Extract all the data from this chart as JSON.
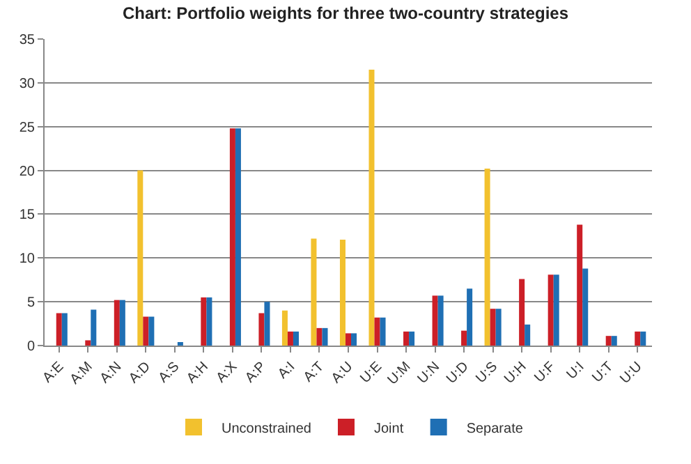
{
  "chart_data": {
    "type": "bar",
    "title": "Chart: Portfolio weights for three two-country strategies",
    "categories": [
      "A:E",
      "A:M",
      "A:N",
      "A:D",
      "A:S",
      "A:H",
      "A:X",
      "A:P",
      "A:I",
      "A:T",
      "A:U",
      "U:E",
      "U:M",
      "U:N",
      "U:D",
      "U:S",
      "U:H",
      "U:F",
      "U:I",
      "U:T",
      "U:U"
    ],
    "series": [
      {
        "name": "Unconstrained",
        "color": "#f2c12e",
        "values": [
          0,
          0,
          0,
          20,
          0,
          0,
          0,
          0,
          4,
          12.2,
          12.1,
          31.5,
          0,
          0,
          0,
          20.2,
          0,
          0,
          0,
          0,
          0
        ]
      },
      {
        "name": "Joint",
        "color": "#cc1f27",
        "values": [
          3.7,
          0.6,
          5.2,
          3.3,
          0,
          5.5,
          24.8,
          3.7,
          1.6,
          2,
          1.4,
          3.2,
          1.6,
          5.7,
          1.7,
          4.2,
          7.6,
          8.1,
          13.8,
          1.1,
          1.6
        ]
      },
      {
        "name": "Separate",
        "color": "#1f6fb4",
        "values": [
          3.7,
          4.1,
          5.2,
          3.3,
          0.4,
          5.5,
          24.8,
          5,
          1.6,
          2,
          1.4,
          3.2,
          1.6,
          5.7,
          6.5,
          4.2,
          2.4,
          8.1,
          8.8,
          1.1,
          1.6
        ]
      }
    ],
    "ylim": [
      0,
      35
    ],
    "yticks": [
      0,
      5,
      10,
      15,
      20,
      25,
      30,
      35
    ],
    "grid": "y",
    "legend": "bottom"
  }
}
